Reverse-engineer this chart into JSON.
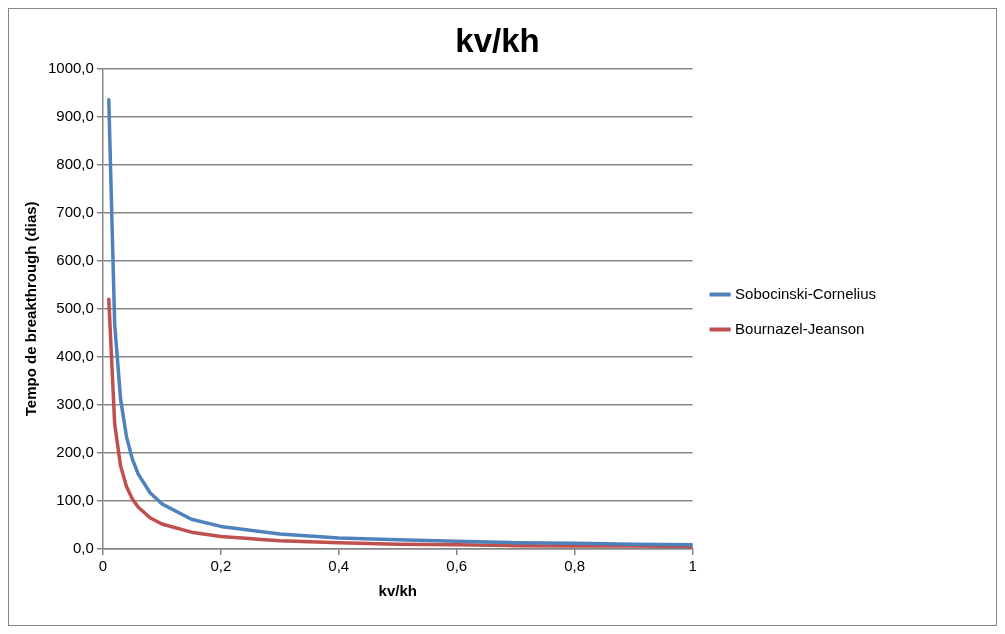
{
  "chart_data": {
    "type": "line",
    "title": "kv/kh",
    "xlabel": "kv/kh",
    "ylabel": "Tempo de breakthrough (dias)",
    "x": [
      0.01,
      0.02,
      0.03,
      0.04,
      0.05,
      0.06,
      0.08,
      0.1,
      0.15,
      0.2,
      0.3,
      0.4,
      0.5,
      0.6,
      0.7,
      0.8,
      0.9,
      1
    ],
    "series": [
      {
        "name": "Sobocinski-Cornelius",
        "color": "#4f81bd",
        "values": [
          935,
          468,
          312,
          234,
          187,
          156,
          117,
          94,
          62,
          47,
          31,
          23,
          19,
          16,
          13,
          12,
          10,
          9
        ]
      },
      {
        "name": "Bournazel-Jeanson",
        "color": "#c0504d",
        "values": [
          520,
          260,
          173,
          130,
          104,
          87,
          65,
          52,
          35,
          26,
          17,
          13,
          10,
          9,
          7,
          6,
          6,
          5
        ]
      }
    ],
    "xlim": [
      0,
      1
    ],
    "xticks": [
      0,
      {
        "value": 0.2,
        "label": "0,2"
      },
      {
        "value": 0.4,
        "label": "0,4"
      },
      {
        "value": 0.6,
        "label": "0,6"
      },
      {
        "value": 0.8,
        "label": "0,8"
      },
      1
    ],
    "ylim": [
      0,
      1000
    ],
    "yticks": [
      {
        "value": 0,
        "label": "0,0"
      },
      {
        "value": 100,
        "label": "100,0"
      },
      {
        "value": 200,
        "label": "200,0"
      },
      {
        "value": 300,
        "label": "300,0"
      },
      {
        "value": 400,
        "label": "400,0"
      },
      {
        "value": 500,
        "label": "500,0"
      },
      {
        "value": 600,
        "label": "600,0"
      },
      {
        "value": 700,
        "label": "700,0"
      },
      {
        "value": 800,
        "label": "800,0"
      },
      {
        "value": 900,
        "label": "900,0"
      },
      {
        "value": 1000,
        "label": "1000,0"
      }
    ],
    "grid": "y",
    "legend": "right",
    "marker": "none",
    "line_style": "solid"
  }
}
